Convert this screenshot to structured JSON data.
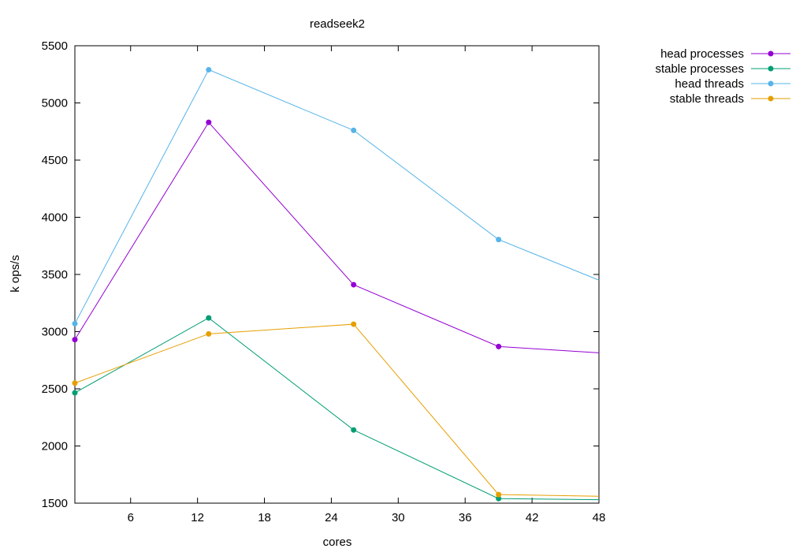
{
  "chart_data": {
    "type": "line",
    "title": "readseek2",
    "xlabel": "cores",
    "ylabel": "k ops/s",
    "xlim": [
      1,
      48
    ],
    "ylim": [
      1500,
      5500
    ],
    "xticks": [
      6,
      12,
      18,
      24,
      30,
      36,
      42,
      48
    ],
    "yticks": [
      1500,
      2000,
      2500,
      3000,
      3500,
      4000,
      4500,
      5000,
      5500
    ],
    "x": [
      1,
      13,
      26,
      39,
      48
    ],
    "legend_position": "outside-top-right",
    "grid": false,
    "series": [
      {
        "name": "head processes",
        "color": "#9400d3",
        "values": [
          2930,
          4830,
          3410,
          2870,
          2815
        ]
      },
      {
        "name": "stable processes",
        "color": "#009e73",
        "values": [
          2465,
          3120,
          2140,
          1540,
          1530
        ]
      },
      {
        "name": "head threads",
        "color": "#56b4e9",
        "values": [
          3070,
          5290,
          4760,
          3805,
          3450
        ]
      },
      {
        "name": "stable threads",
        "color": "#e69f00",
        "values": [
          2550,
          2980,
          3065,
          1575,
          1560
        ]
      }
    ]
  }
}
